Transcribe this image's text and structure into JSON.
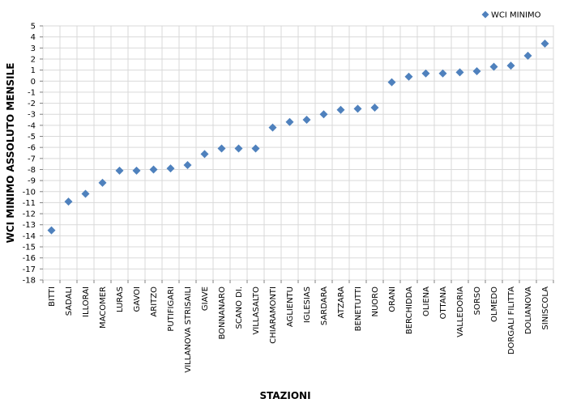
{
  "chart_data": {
    "type": "scatter",
    "xlabel": "STAZIONI",
    "ylabel": "WCI MINIMO ASSOLUTO MENSILE",
    "ylim": [
      -18,
      5
    ],
    "ystep": 1,
    "grid": true,
    "legend_position": "top-right",
    "marker": "diamond",
    "categories": [
      "BITTI",
      "SADALI",
      "ILLORAI",
      "MACOMER",
      "LURAS",
      "GAVOI",
      "ARITZO",
      "PUTIFIGARI",
      "VILLANOVA STRISAILI",
      "GIAVE",
      "BONNANARO",
      "SCANO DI.",
      "VILLASALTO",
      "CHIARAMONTI",
      "AGLIENTU",
      "IGLESIAS",
      "SARDARA",
      "ATZARA",
      "BENETUTTI",
      "NUORO",
      "ORANI",
      "BERCHIDDA",
      "OLIENA",
      "OTTANA",
      "VALLEDORIA",
      "SORSO",
      "OLMEDO",
      "DORGALI FILITTA",
      "DOLIANOVA",
      "SINISCOLA"
    ],
    "series": [
      {
        "name": "WCI MINIMO",
        "color": "#4F81BD",
        "values": [
          -13.5,
          -10.9,
          -10.2,
          -9.2,
          -8.1,
          -8.1,
          -8.0,
          -7.9,
          -7.6,
          -6.6,
          -6.1,
          -6.1,
          -6.1,
          -4.2,
          -3.7,
          -3.5,
          -3.0,
          -2.6,
          -2.5,
          -2.4,
          -0.1,
          0.4,
          0.7,
          0.7,
          0.8,
          0.9,
          1.3,
          1.4,
          2.3,
          3.4
        ]
      }
    ]
  }
}
